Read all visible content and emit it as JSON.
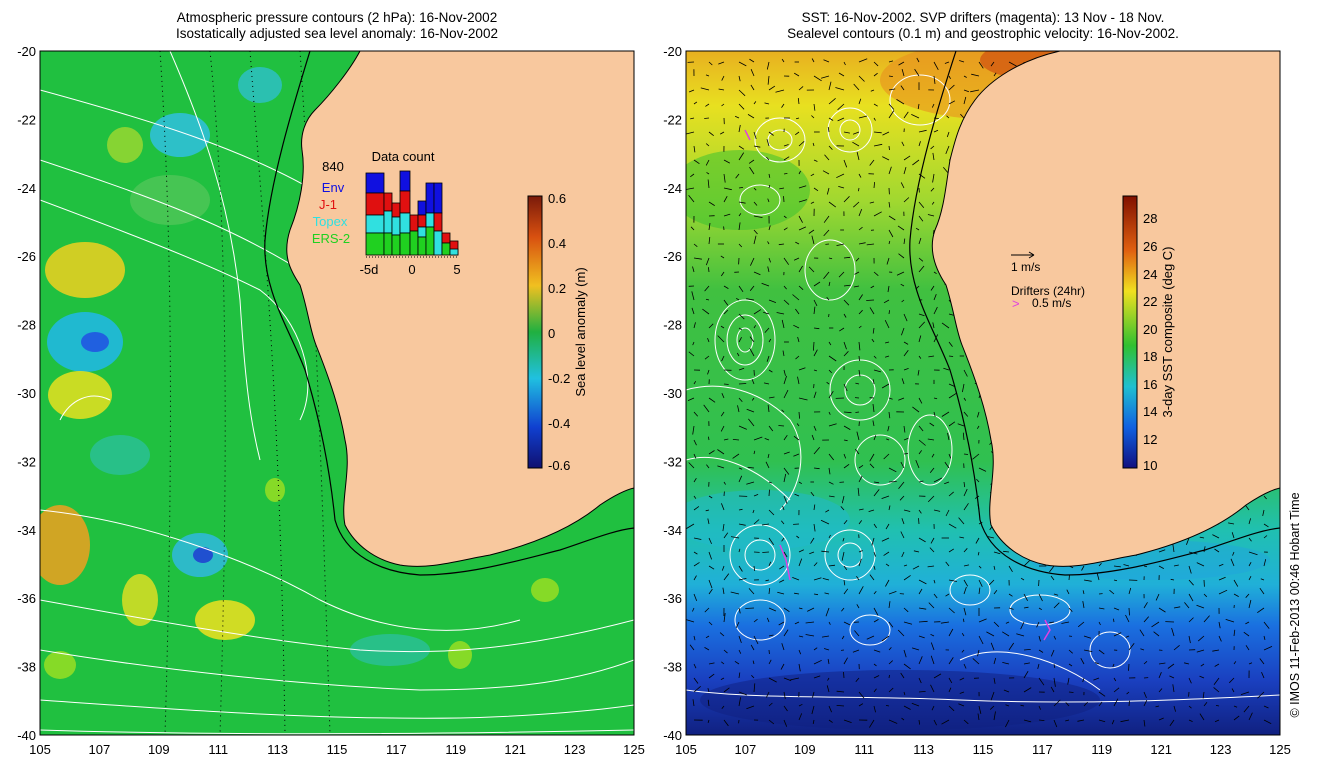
{
  "left_panel": {
    "title_line1": "Atmospheric pressure contours (2 hPa): 16-Nov-2002",
    "title_line2": "Isostatically adjusted sea level anomaly: 16-Nov-2002",
    "colorbar_label": "Sea level anomaly (m)",
    "colorbar_ticks": [
      "0.6",
      "0.4",
      "0.2",
      "0",
      "-0.2",
      "-0.4",
      "-0.6"
    ],
    "data_count": {
      "title": "Data count",
      "total": "840",
      "legend": [
        {
          "label": "Env",
          "color": "#1010e0"
        },
        {
          "label": "J-1",
          "color": "#e01010"
        },
        {
          "label": "Topex",
          "color": "#30e0e0"
        },
        {
          "label": "ERS-2",
          "color": "#20d020"
        }
      ],
      "x_ticks": [
        "-5d",
        "0",
        "5"
      ]
    }
  },
  "right_panel": {
    "title_line1": "SST: 16-Nov-2002. SVP drifters (magenta): 13 Nov - 18 Nov.",
    "title_line2": "Sealevel contours (0.1 m) and geostrophic velocity: 16-Nov-2002.",
    "colorbar_label": "3-day SST composite (deg C)",
    "colorbar_ticks": [
      "28",
      "26",
      "24",
      "22",
      "20",
      "18",
      "16",
      "14",
      "12",
      "10"
    ],
    "velocity_legend": "1 m/s",
    "drifters_legend": "Drifters (24hr)",
    "drifters_speed": "0.5 m/s"
  },
  "axes": {
    "lat_ticks": [
      "-20",
      "-22",
      "-24",
      "-26",
      "-28",
      "-30",
      "-32",
      "-34",
      "-36",
      "-38",
      "-40"
    ],
    "lon_ticks": [
      "105",
      "107",
      "109",
      "111",
      "113",
      "115",
      "117",
      "119",
      "121",
      "123",
      "125"
    ]
  },
  "stamp": "© IMOS 11-Feb-2013 00:46 Hobart Time",
  "colors": {
    "land": "#f8c89e",
    "ocean_green": "#20c040",
    "sst_blue": "#1a50d0"
  }
}
